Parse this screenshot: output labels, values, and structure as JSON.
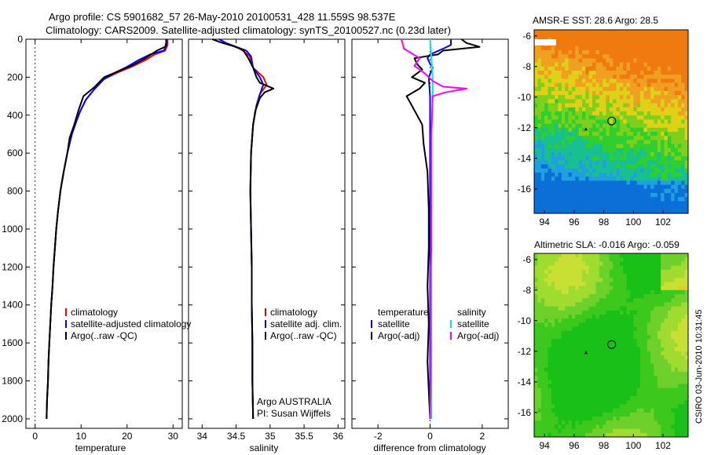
{
  "title_line1": "Argo profile: CS 5901682_57 26-May-2010 20100531_428 11.559S 98.537E",
  "title_line2": "Climatology: CARS2009. Satellite-adjusted climatology: synTS_20100527.nc (0.23d later)",
  "stamp": "CSIRO 03-Jun-2010 10:31:45",
  "colors": {
    "climatology": "#ff0000",
    "satellite": "#0000ff",
    "argo": "#000000",
    "salinity_sat": "#00e5e5",
    "salinity_argo": "#ff00ff"
  },
  "chart_data": [
    {
      "type": "line",
      "xlabel": "temperature",
      "ylabel": "",
      "xlim": [
        -2,
        32
      ],
      "ylim": [
        2050,
        0
      ],
      "y_reversed": true,
      "xticks": [
        "0",
        "10",
        "20",
        "30"
      ],
      "yticks": [
        "0",
        "200",
        "400",
        "600",
        "800",
        "1000",
        "1200",
        "1400",
        "1600",
        "1800",
        "2000"
      ],
      "legend": [
        "climatology",
        "satellite-adjusted climatology",
        "Argo(..raw -QC)"
      ],
      "series": [
        {
          "name": "climatology",
          "color": "#ff0000",
          "points": [
            [
              28.8,
              0
            ],
            [
              28.8,
              30
            ],
            [
              28.3,
              60
            ],
            [
              26,
              80
            ],
            [
              24,
              110
            ],
            [
              21,
              145
            ],
            [
              18,
              175
            ],
            [
              15,
              210
            ],
            [
              13,
              260
            ],
            [
              11,
              320
            ],
            [
              9.8,
              380
            ],
            [
              9,
              430
            ],
            [
              8,
              500
            ],
            [
              7,
              600
            ],
            [
              6.2,
              700
            ],
            [
              5.5,
              800
            ],
            [
              5,
              900
            ],
            [
              4.6,
              1000
            ],
            [
              4.3,
              1100
            ],
            [
              4,
              1200
            ],
            [
              3.8,
              1300
            ],
            [
              3.5,
              1400
            ],
            [
              3.3,
              1500
            ],
            [
              3.1,
              1600
            ],
            [
              2.9,
              1700
            ],
            [
              2.8,
              1800
            ],
            [
              2.6,
              1900
            ],
            [
              2.5,
              2000
            ]
          ]
        },
        {
          "name": "satellite-adjusted climatology",
          "color": "#0000ff",
          "points": [
            [
              28.6,
              0
            ],
            [
              28.6,
              30
            ],
            [
              28,
              60
            ],
            [
              25,
              80
            ],
            [
              22.5,
              110
            ],
            [
              20,
              145
            ],
            [
              17.5,
              175
            ],
            [
              15,
              210
            ],
            [
              13,
              260
            ],
            [
              11,
              320
            ],
            [
              9.8,
              380
            ],
            [
              9,
              430
            ],
            [
              8,
              500
            ],
            [
              7,
              600
            ],
            [
              6.2,
              700
            ],
            [
              5.5,
              800
            ],
            [
              5,
              900
            ],
            [
              4.6,
              1000
            ],
            [
              4.3,
              1100
            ],
            [
              4,
              1200
            ],
            [
              3.8,
              1300
            ],
            [
              3.5,
              1400
            ],
            [
              3.3,
              1500
            ],
            [
              3.1,
              1600
            ],
            [
              2.9,
              1700
            ],
            [
              2.8,
              1800
            ],
            [
              2.6,
              1900
            ],
            [
              2.5,
              2000
            ]
          ]
        },
        {
          "name": "Argo(..raw -QC)",
          "color": "#000000",
          "points": [
            [
              28.5,
              0
            ],
            [
              28.5,
              20
            ],
            [
              28.3,
              40
            ],
            [
              26.5,
              60
            ],
            [
              24,
              100
            ],
            [
              21,
              140
            ],
            [
              18,
              170
            ],
            [
              15,
              200
            ],
            [
              13,
              250
            ],
            [
              10.5,
              300
            ],
            [
              9.5,
              370
            ],
            [
              8.5,
              450
            ],
            [
              7.5,
              520
            ],
            [
              7,
              600
            ],
            [
              6.2,
              700
            ],
            [
              5.5,
              800
            ],
            [
              5,
              900
            ],
            [
              4.6,
              1000
            ],
            [
              4.3,
              1100
            ],
            [
              4,
              1200
            ],
            [
              3.8,
              1300
            ],
            [
              3.5,
              1400
            ],
            [
              3.3,
              1500
            ],
            [
              3.1,
              1600
            ],
            [
              2.9,
              1700
            ],
            [
              2.8,
              1800
            ],
            [
              2.6,
              1900
            ],
            [
              2.5,
              2000
            ]
          ]
        }
      ]
    },
    {
      "type": "line",
      "xlabel": "salinity",
      "xlim": [
        33.8,
        36.1
      ],
      "ylim": [
        2050,
        0
      ],
      "y_reversed": true,
      "xticks": [
        "34",
        "34.5",
        "35",
        "35.5",
        "36"
      ],
      "legend": [
        "climatology",
        "satellite adj. clim.",
        "Argo(..raw -QC)"
      ],
      "annotation": [
        "Argo AUSTRALIA",
        "PI: Susan Wijffels"
      ],
      "series": [
        {
          "name": "climatology",
          "color": "#ff0000",
          "points": [
            [
              34.25,
              0
            ],
            [
              34.35,
              20
            ],
            [
              34.5,
              40
            ],
            [
              34.6,
              60
            ],
            [
              34.7,
              90
            ],
            [
              34.75,
              150
            ],
            [
              34.9,
              200
            ],
            [
              34.95,
              240
            ],
            [
              34.85,
              290
            ],
            [
              34.8,
              350
            ],
            [
              34.75,
              450
            ],
            [
              34.72,
              600
            ],
            [
              34.71,
              800
            ],
            [
              34.72,
              1000
            ],
            [
              34.73,
              1200
            ],
            [
              34.73,
              1400
            ],
            [
              34.74,
              1600
            ],
            [
              34.74,
              1800
            ],
            [
              34.75,
              2000
            ]
          ]
        },
        {
          "name": "satellite adj. clim.",
          "color": "#0000ff",
          "points": [
            [
              34.25,
              0
            ],
            [
              34.35,
              20
            ],
            [
              34.5,
              40
            ],
            [
              34.65,
              60
            ],
            [
              34.72,
              90
            ],
            [
              34.75,
              150
            ],
            [
              34.85,
              200
            ],
            [
              34.9,
              240
            ],
            [
              34.85,
              290
            ],
            [
              34.8,
              350
            ],
            [
              34.75,
              450
            ],
            [
              34.72,
              600
            ],
            [
              34.71,
              800
            ],
            [
              34.72,
              1000
            ],
            [
              34.73,
              1200
            ],
            [
              34.73,
              1400
            ],
            [
              34.74,
              1600
            ],
            [
              34.74,
              1800
            ],
            [
              34.75,
              2000
            ]
          ]
        },
        {
          "name": "Argo(..raw -QC)",
          "color": "#000000",
          "points": [
            [
              34.15,
              0
            ],
            [
              34.3,
              20
            ],
            [
              34.45,
              35
            ],
            [
              34.6,
              55
            ],
            [
              34.68,
              100
            ],
            [
              34.75,
              150
            ],
            [
              34.8,
              200
            ],
            [
              34.85,
              230
            ],
            [
              35.05,
              260
            ],
            [
              34.92,
              280
            ],
            [
              34.85,
              310
            ],
            [
              34.78,
              380
            ],
            [
              34.75,
              450
            ],
            [
              34.72,
              600
            ],
            [
              34.71,
              800
            ],
            [
              34.72,
              1000
            ],
            [
              34.73,
              1200
            ],
            [
              34.73,
              1400
            ],
            [
              34.74,
              1600
            ],
            [
              34.74,
              1800
            ],
            [
              34.75,
              2000
            ]
          ]
        }
      ]
    },
    {
      "type": "line",
      "xlabel": "difference from climatology",
      "xlim": [
        -3,
        3
      ],
      "ylim": [
        2050,
        0
      ],
      "y_reversed": true,
      "xticks": [
        "-2",
        "0",
        "2"
      ],
      "legend": {
        "temperature": [
          "satellite",
          "Argo(-adj)"
        ],
        "salinity": [
          "satellite",
          "Argo(-adj)"
        ]
      },
      "series": [
        {
          "name": "temperature satellite",
          "color": "#0000ff",
          "points": [
            [
              0.8,
              0
            ],
            [
              0.8,
              30
            ],
            [
              0.5,
              50
            ],
            [
              0,
              80
            ],
            [
              -0.1,
              100
            ],
            [
              0,
              130
            ],
            [
              0.1,
              150
            ],
            [
              -0.05,
              200
            ],
            [
              0,
              300
            ],
            [
              0,
              500
            ],
            [
              0,
              1000
            ],
            [
              0,
              1500
            ],
            [
              0,
              2000
            ]
          ]
        },
        {
          "name": "temperature Argo(-adj)",
          "color": "#000000",
          "points": [
            [
              1.2,
              0
            ],
            [
              1.4,
              20
            ],
            [
              1.9,
              40
            ],
            [
              0.5,
              60
            ],
            [
              0.3,
              80
            ],
            [
              -0.6,
              100
            ],
            [
              -0.5,
              130
            ],
            [
              -0.3,
              160
            ],
            [
              -0.7,
              200
            ],
            [
              -0.2,
              230
            ],
            [
              -0.4,
              260
            ],
            [
              -0.9,
              300
            ],
            [
              -0.7,
              350
            ],
            [
              -0.3,
              450
            ],
            [
              -0.25,
              550
            ],
            [
              -0.1,
              700
            ],
            [
              -0.05,
              900
            ],
            [
              -0.05,
              1100
            ],
            [
              -0.1,
              1300
            ],
            [
              -0.05,
              1500
            ],
            [
              -0.1,
              1700
            ],
            [
              -0.05,
              1850
            ],
            [
              0,
              2000
            ]
          ]
        },
        {
          "name": "salinity satellite",
          "color": "#00e5e5",
          "points": [
            [
              0,
              0
            ],
            [
              0.05,
              100
            ],
            [
              0.1,
              200
            ],
            [
              0.1,
              300
            ],
            [
              0.05,
              500
            ],
            [
              0.05,
              1000
            ],
            [
              0.05,
              1500
            ],
            [
              0.05,
              2000
            ]
          ]
        },
        {
          "name": "salinity Argo(-adj)",
          "color": "#ff00ff",
          "points": [
            [
              -1.1,
              0
            ],
            [
              -1,
              50
            ],
            [
              -0.4,
              100
            ],
            [
              -0.6,
              140
            ],
            [
              -0.2,
              180
            ],
            [
              0.1,
              220
            ],
            [
              0.5,
              250
            ],
            [
              1.4,
              260
            ],
            [
              0.6,
              280
            ],
            [
              0.1,
              300
            ],
            [
              0.05,
              500
            ],
            [
              0.05,
              800
            ],
            [
              0.05,
              1000
            ],
            [
              0.05,
              1100
            ],
            [
              0.02,
              1200
            ],
            [
              0.02,
              1500
            ],
            [
              0.02,
              1800
            ],
            [
              0,
              2000
            ]
          ]
        }
      ]
    },
    {
      "type": "heatmap",
      "title": "AMSR-E SST: 28.6 Argo: 28.5",
      "xticks": [
        "94",
        "96",
        "98",
        "100",
        "102"
      ],
      "yticks": [
        "-6",
        "-8",
        "-10",
        "-12",
        "-14",
        "-16"
      ],
      "xlim": [
        93.3,
        103.7
      ],
      "ylim": [
        -17.6,
        -5.6
      ],
      "argo_position": [
        98.537,
        -11.559
      ],
      "prev_position": [
        96.8,
        -12.1
      ],
      "colormap": [
        "#0a6fd6",
        "#1fa0e0",
        "#18c090",
        "#2ecf2e",
        "#7ed01a",
        "#e0d018",
        "#f0a020",
        "#f07a10"
      ]
    },
    {
      "type": "heatmap",
      "title": "Altimetric SLA: -0.016 Argo: -0.059",
      "xticks": [
        "94",
        "96",
        "98",
        "100",
        "102"
      ],
      "yticks": [
        "-6",
        "-8",
        "-10",
        "-12",
        "-14",
        "-16"
      ],
      "xlim": [
        93.3,
        103.7
      ],
      "ylim": [
        -17.6,
        -5.6
      ],
      "argo_position": [
        98.537,
        -11.559
      ],
      "prev_position": [
        96.8,
        -12.1
      ],
      "colormap": [
        "#18c018",
        "#3cc81c",
        "#6ed02a",
        "#a0dc30",
        "#c8e034",
        "#e8c830",
        "#f0a020"
      ]
    }
  ]
}
